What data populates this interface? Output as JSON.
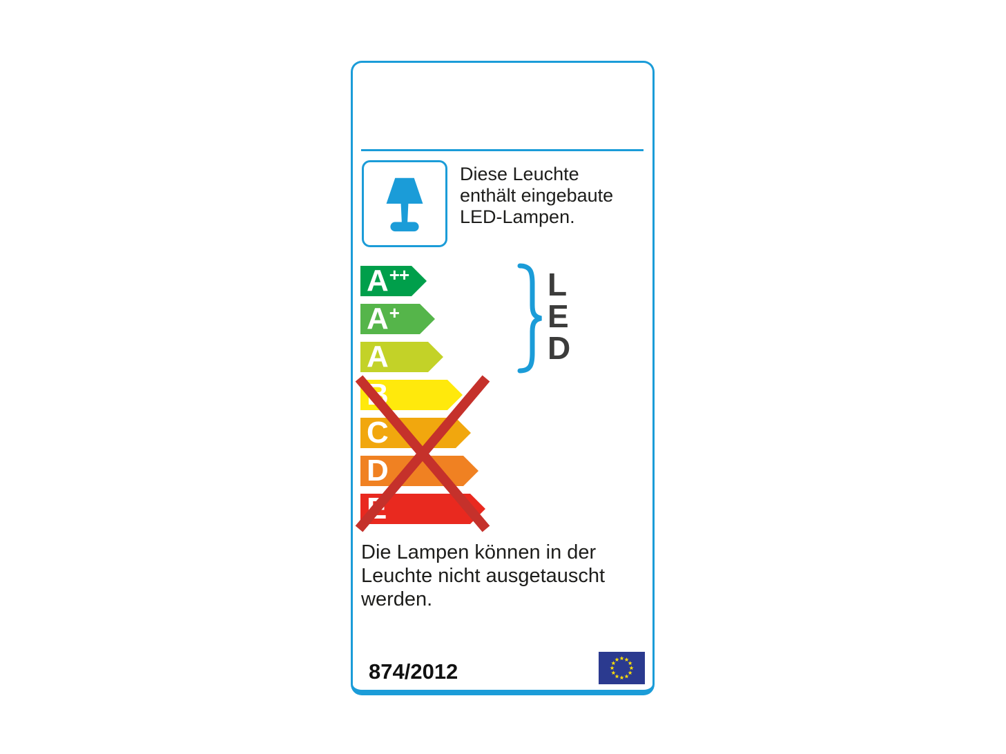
{
  "card": {
    "intro": {
      "full_text": "Diese Leuchte enthält eingebaute LED-Lampen.",
      "lines": [
        "Diese Leuchte",
        "enthält eingebaute",
        "LED-Lampen."
      ]
    },
    "ratings": [
      {
        "grade": "A",
        "superscript": "++",
        "color": "#009f4b",
        "arrow_width": 96,
        "crossed_out": false
      },
      {
        "grade": "A",
        "superscript": "+",
        "color": "#55b54a",
        "arrow_width": 108,
        "crossed_out": false
      },
      {
        "grade": "A",
        "superscript": "",
        "color": "#c3d228",
        "arrow_width": 120,
        "crossed_out": false
      },
      {
        "grade": "B",
        "superscript": "",
        "color": "#ffe90c",
        "arrow_width": 148,
        "crossed_out": true
      },
      {
        "grade": "C",
        "superscript": "",
        "color": "#f1a70e",
        "arrow_width": 160,
        "crossed_out": true
      },
      {
        "grade": "D",
        "superscript": "",
        "color": "#f08122",
        "arrow_width": 171,
        "crossed_out": true
      },
      {
        "grade": "E",
        "superscript": "",
        "color": "#e9291f",
        "arrow_width": 181,
        "crossed_out": true
      }
    ],
    "led_label": {
      "letters": [
        "L",
        "E",
        "D"
      ]
    },
    "note": {
      "full_text": "Die Lampen können in der Leuchte nicht ausgetauscht werden.",
      "lines": [
        "Die Lampen können in der",
        "Leuchte nicht ausgetauscht",
        "werden."
      ]
    },
    "regulation_number": "874/2012",
    "icons": {
      "pictogram": "table-lamp-icon",
      "bracket": "curly-brace-icon",
      "cross": "cross-out-x-icon",
      "flag": "eu-flag-icon"
    },
    "colors": {
      "accent_blue": "#1b9cd8",
      "text_dark": "#1d1d1b",
      "led_text": "#3c3c3b",
      "cross_red": "#c5312b",
      "eu_flag_blue": "#2b3a8f",
      "eu_flag_star": "#fcdd09"
    }
  }
}
